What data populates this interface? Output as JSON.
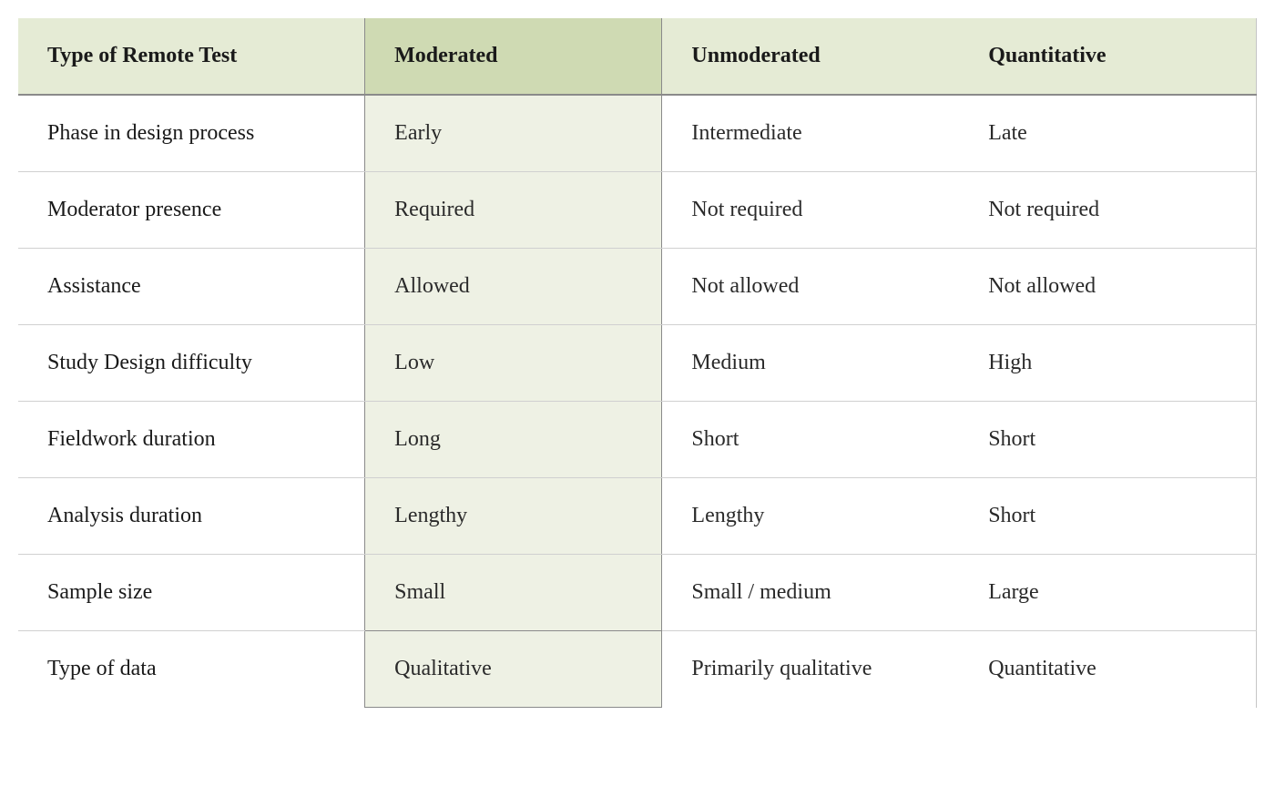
{
  "table": {
    "type": "table",
    "background_color": "#ffffff",
    "header_bg_color": "#e5ebd5",
    "highlighted_header_bg": "#cfdab3",
    "highlighted_cell_bg": "#eef1e4",
    "border_color_dark": "#8a8a8a",
    "border_color_light": "#d0d0d0",
    "header_text_color": "#1a1a1a",
    "body_text_color": "#2a2a2a",
    "font_family": "Georgia, serif",
    "header_fontsize": 24,
    "body_fontsize": 24,
    "cell_padding": "28px 32px",
    "highlighted_column_index": 1,
    "columns": [
      "Type of Remote Test",
      "Moderated",
      "Unmoderated",
      "Quantitative"
    ],
    "column_widths": [
      "28%",
      "24%",
      "24%",
      "24%"
    ],
    "rows": [
      {
        "label": "Phase in design process",
        "moderated": "Early",
        "unmoderated": "Intermediate",
        "quantitative": "Late"
      },
      {
        "label": "Moderator presence",
        "moderated": "Required",
        "unmoderated": "Not required",
        "quantitative": "Not required"
      },
      {
        "label": "Assistance",
        "moderated": "Allowed",
        "unmoderated": "Not allowed",
        "quantitative": "Not allowed"
      },
      {
        "label": "Study Design difficulty",
        "moderated": "Low",
        "unmoderated": "Medium",
        "quantitative": "High"
      },
      {
        "label": "Fieldwork duration",
        "moderated": "Long",
        "unmoderated": "Short",
        "quantitative": "Short"
      },
      {
        "label": "Analysis duration",
        "moderated": "Lengthy",
        "unmoderated": "Lengthy",
        "quantitative": "Short"
      },
      {
        "label": "Sample size",
        "moderated": "Small",
        "unmoderated": "Small / medium",
        "quantitative": "Large"
      },
      {
        "label": "Type of data",
        "moderated": "Qualitative",
        "unmoderated": "Primarily qualitative",
        "quantitative": "Quantitative"
      }
    ]
  }
}
